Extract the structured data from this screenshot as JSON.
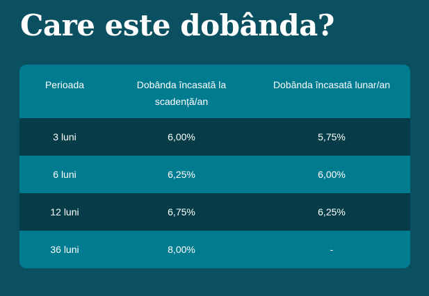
{
  "title": "Care este dobânda?",
  "table": {
    "headers": [
      "Perioada",
      "Dobânda încasată la scadență/an",
      "Dobânda încasată lunar/an"
    ],
    "rows": [
      [
        "3 luni",
        "6,00%",
        "5,75%"
      ],
      [
        "6 luni",
        "6,25%",
        "6,00%"
      ],
      [
        "12 luni",
        "6,75%",
        "6,25%"
      ],
      [
        "36 luni",
        "8,00%",
        "-"
      ]
    ]
  },
  "colors": {
    "background": "#0b5060",
    "header_row": "#007b8f",
    "dark_row": "#053c48",
    "light_row": "#007b8f",
    "text": "#ffffff"
  }
}
